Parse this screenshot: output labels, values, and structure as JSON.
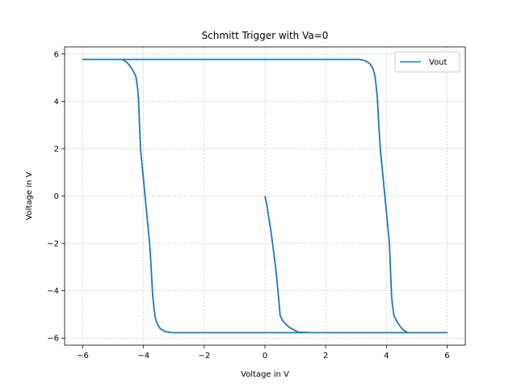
{
  "chart_data": {
    "type": "line",
    "title": "Schmitt Trigger with Va=0",
    "xlabel": "Voltage in V",
    "ylabel": "Voltage in V",
    "xlim": [
      -6.6,
      6.6
    ],
    "ylim": [
      -6.3,
      6.3
    ],
    "xticks": [
      -6,
      -4,
      -2,
      0,
      2,
      4,
      6
    ],
    "yticks": [
      -6,
      -4,
      -2,
      0,
      2,
      4,
      6
    ],
    "grid": true,
    "legend_position": "top-right",
    "colors": {
      "line": "#1f77b4",
      "grid": "#b0b0b0"
    },
    "series": [
      {
        "name": "Vout",
        "x": [
          0.0,
          0.05,
          0.2,
          0.35,
          0.45,
          0.5,
          0.6,
          0.8,
          1.1,
          1.5,
          3.0,
          4.5,
          6.0,
          5.0,
          4.7,
          4.55,
          4.45,
          4.35,
          4.25,
          4.2,
          4.17,
          4.1,
          3.95,
          3.8,
          3.75,
          3.7,
          3.65,
          3.62,
          3.6,
          3.55,
          3.45,
          3.3,
          3.1,
          2.95,
          1.5,
          0.0,
          -3.0,
          -6.0,
          -4.7,
          -4.55,
          -4.45,
          -4.35,
          -4.25,
          -4.2,
          -4.17,
          -4.1,
          -3.95,
          -3.8,
          -3.75,
          -3.7,
          -3.65,
          -3.62,
          -3.6,
          -3.55,
          -3.45,
          -3.3,
          -3.1,
          -2.95,
          -1.5,
          0.0,
          3.0,
          4.7,
          6.0
        ],
        "y": [
          0.0,
          -0.3,
          -1.5,
          -3.0,
          -4.3,
          -5.05,
          -5.3,
          -5.55,
          -5.75,
          -5.77,
          -5.77,
          -5.77,
          -5.77,
          -5.77,
          -5.77,
          -5.65,
          -5.5,
          -5.3,
          -5.05,
          -4.6,
          -4.2,
          -2.0,
          0.0,
          2.0,
          3.0,
          4.2,
          4.8,
          5.1,
          5.2,
          5.4,
          5.6,
          5.72,
          5.77,
          5.77,
          5.77,
          5.77,
          5.77,
          5.77,
          5.77,
          5.65,
          5.5,
          5.3,
          5.05,
          4.6,
          4.2,
          2.0,
          0.0,
          -2.0,
          -3.0,
          -4.2,
          -4.8,
          -5.1,
          -5.2,
          -5.4,
          -5.6,
          -5.72,
          -5.77,
          -5.77,
          -5.77,
          -5.77,
          -5.77,
          -5.77,
          -5.77
        ]
      }
    ]
  }
}
